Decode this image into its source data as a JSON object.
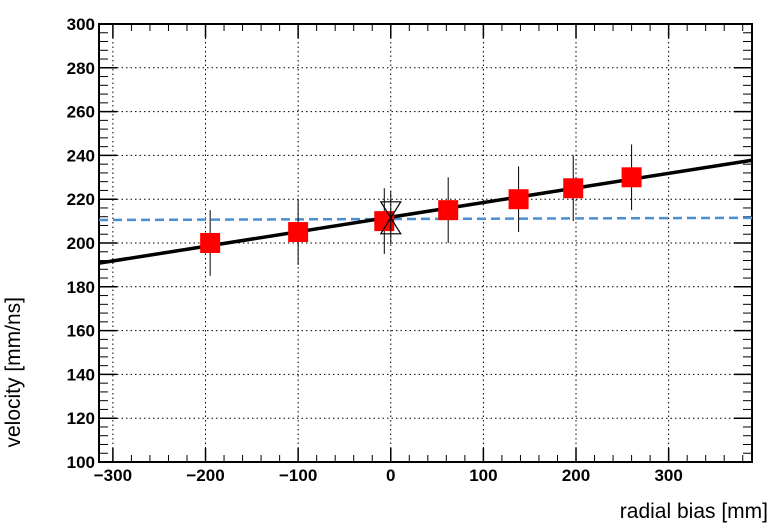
{
  "chart_data": {
    "type": "scatter",
    "title": "",
    "xlabel": "radial bias [mm]",
    "ylabel": "velocity [mm/ns]",
    "xlim": [
      -315,
      390
    ],
    "ylim": [
      100,
      300
    ],
    "grid": true,
    "legend": "none",
    "xticks": [
      -300,
      -200,
      -100,
      0,
      100,
      200,
      300
    ],
    "xtick_labels": [
      "−300",
      "−200",
      "−100",
      "0",
      "100",
      "200",
      "300"
    ],
    "yticks": [
      100,
      120,
      140,
      160,
      180,
      200,
      220,
      240,
      260,
      280,
      300
    ],
    "ytick_labels": [
      "100",
      "120",
      "140",
      "160",
      "180",
      "200",
      "220",
      "240",
      "260",
      "280",
      "300"
    ],
    "series": [
      {
        "kind": "points_with_errors",
        "color": "#ff0000",
        "marker": "square",
        "x": [
          -195,
          -100,
          -7,
          62,
          138,
          197,
          260
        ],
        "y": [
          200,
          205,
          210,
          215,
          220,
          225,
          230
        ],
        "yerr": [
          15,
          15,
          15,
          15,
          15,
          15,
          15
        ]
      },
      {
        "kind": "special_point",
        "marker": "hourglass",
        "color": "#000000",
        "x": 0,
        "y": 211.5,
        "yerr": 12
      },
      {
        "kind": "fit_line",
        "color": "#000000",
        "style": "solid",
        "x": [
          -315,
          390
        ],
        "y": [
          190.8,
          237.8
        ]
      },
      {
        "kind": "reference_line",
        "color": "#4a90d0",
        "style": "dashed",
        "x": [
          -315,
          390
        ],
        "y": [
          210.5,
          211.5
        ]
      }
    ]
  }
}
